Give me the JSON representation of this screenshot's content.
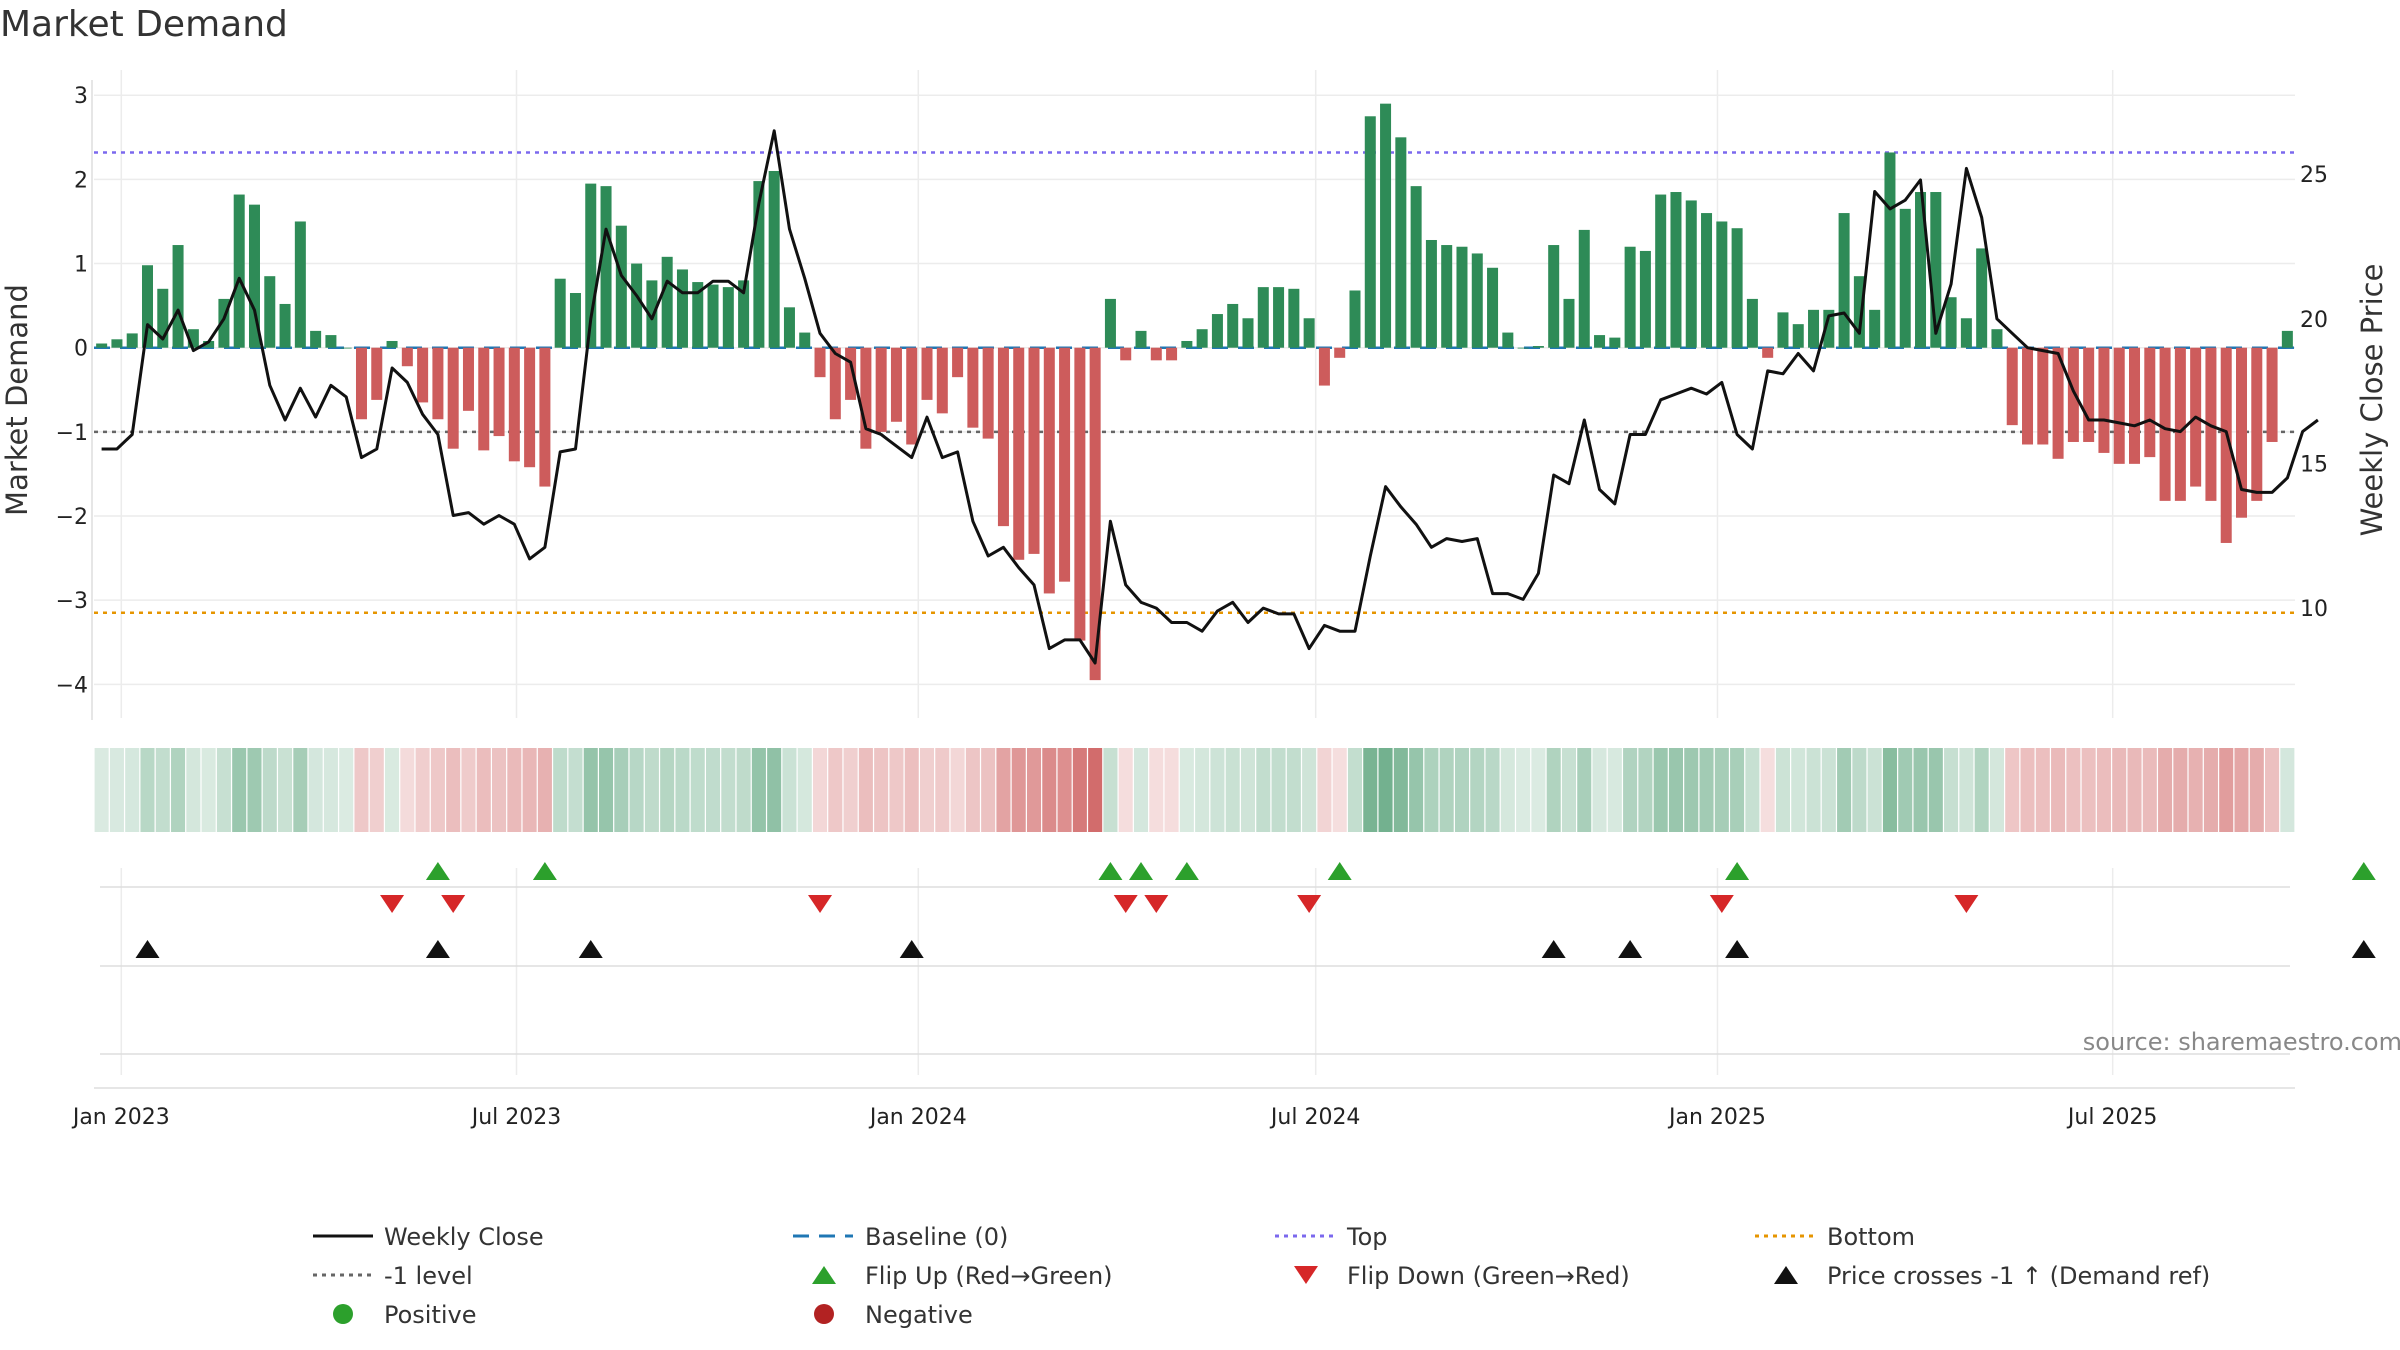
{
  "title": "Market Demand",
  "source": "source: sharemaestro.com",
  "chart_data": {
    "type": "bar",
    "title": "Market Demand",
    "xlabel": "",
    "ylabel": "Market Demand",
    "ylabel_right": "Weekly Close Price",
    "ylim": [
      -4.4,
      3.3
    ],
    "ylim_right": [
      6.2,
      28.6
    ],
    "yticks": [
      -4,
      -3,
      -2,
      -1,
      0,
      1,
      2,
      3
    ],
    "yticks_right": [
      10,
      15,
      20,
      25
    ],
    "ytick_labels": [
      "−4",
      "−3",
      "−2",
      "−1",
      "0",
      "1",
      "2",
      "3"
    ],
    "ytick_labels_right": [
      "10",
      "15",
      "20",
      "25"
    ],
    "x_start": "2022-12-23",
    "x_step_days": 7,
    "xticks": [
      {
        "label": "Jan 2023",
        "date": "2023-01-01"
      },
      {
        "label": "Jul 2023",
        "date": "2023-07-01"
      },
      {
        "label": "Jan 2024",
        "date": "2024-01-01"
      },
      {
        "label": "Jul 2024",
        "date": "2024-07-01"
      },
      {
        "label": "Jan 2025",
        "date": "2025-01-01"
      },
      {
        "label": "Jul 2025",
        "date": "2025-07-01"
      }
    ],
    "reference_lines": {
      "top": 2.32,
      "bottom": -3.15,
      "minus_one": -1,
      "baseline": 0
    },
    "colors": {
      "positive": "#2e8b57",
      "negative": "#cd5c5c",
      "close": "#111111",
      "top": "#7b68ee",
      "bottom": "#e69500",
      "minus_one": "#666666",
      "baseline": "#1f77b4",
      "flip_up": "#2ca02c",
      "flip_down": "#d62728",
      "cross": "#111111"
    },
    "demand": [
      0.05,
      0.1,
      0.17,
      0.98,
      0.7,
      1.22,
      0.22,
      0.08,
      0.58,
      1.82,
      1.7,
      0.85,
      0.52,
      1.5,
      0.2,
      0.15,
      0.0,
      -0.85,
      -0.62,
      0.08,
      -0.22,
      -0.65,
      -0.85,
      -1.2,
      -0.75,
      -1.22,
      -1.05,
      -1.35,
      -1.42,
      -1.65,
      0.82,
      0.65,
      1.95,
      1.92,
      1.45,
      1.0,
      0.8,
      1.08,
      0.93,
      0.78,
      0.75,
      0.72,
      0.8,
      1.98,
      2.1,
      0.48,
      0.18,
      -0.35,
      -0.85,
      -0.62,
      -1.2,
      -1.0,
      -0.88,
      -1.15,
      -0.62,
      -0.78,
      -0.35,
      -0.95,
      -1.08,
      -2.12,
      -2.52,
      -2.45,
      -2.92,
      -2.78,
      -3.48,
      -3.95,
      0.58,
      -0.15,
      0.2,
      -0.15,
      -0.15,
      0.08,
      0.22,
      0.4,
      0.52,
      0.35,
      0.72,
      0.72,
      0.7,
      0.35,
      -0.45,
      -0.12,
      0.68,
      2.75,
      2.9,
      2.5,
      1.92,
      1.28,
      1.22,
      1.2,
      1.12,
      0.95,
      0.18,
      0.0,
      0.02,
      1.22,
      0.58,
      1.4,
      0.15,
      0.12,
      1.2,
      1.15,
      1.82,
      1.85,
      1.75,
      1.6,
      1.5,
      1.42,
      0.58,
      -0.12,
      0.42,
      0.28,
      0.45,
      0.45,
      1.6,
      0.85,
      0.45,
      2.32,
      1.65,
      1.85,
      1.85,
      0.6,
      0.35,
      1.18,
      0.22,
      -0.92,
      -1.15,
      -1.15,
      -1.32,
      -1.12,
      -1.12,
      -1.25,
      -1.38,
      -1.38,
      -1.3,
      -1.82,
      -1.82,
      -1.65,
      -1.82,
      -2.32,
      -2.02,
      -1.82,
      -1.12,
      0.2
    ],
    "weekly_close": [
      15.5,
      15.5,
      16.0,
      19.8,
      19.3,
      20.3,
      18.9,
      19.2,
      20.0,
      21.4,
      20.3,
      17.7,
      16.5,
      17.6,
      16.6,
      17.7,
      17.3,
      15.2,
      15.5,
      18.3,
      17.8,
      16.7,
      16.0,
      13.2,
      13.3,
      12.9,
      13.2,
      12.9,
      11.7,
      12.1,
      15.4,
      15.5,
      20.0,
      23.1,
      21.5,
      20.8,
      20.0,
      21.3,
      20.9,
      20.9,
      21.3,
      21.3,
      20.9,
      24.0,
      26.5,
      23.1,
      21.4,
      19.5,
      18.8,
      18.5,
      16.2,
      16.0,
      15.6,
      15.2,
      16.6,
      15.2,
      15.4,
      13.0,
      11.8,
      12.1,
      11.4,
      10.8,
      8.6,
      8.9,
      8.9,
      8.1,
      13.0,
      10.8,
      10.2,
      10.0,
      9.5,
      9.5,
      9.2,
      9.9,
      10.2,
      9.5,
      10.0,
      9.8,
      9.8,
      8.6,
      9.4,
      9.2,
      9.2,
      11.8,
      14.2,
      13.5,
      12.9,
      12.1,
      12.4,
      12.3,
      12.4,
      10.5,
      10.5,
      10.3,
      11.2,
      14.6,
      14.3,
      16.5,
      14.1,
      13.6,
      16.0,
      16.0,
      17.2,
      17.4,
      17.6,
      17.4,
      17.8,
      16.0,
      15.5,
      18.2,
      18.1,
      18.8,
      18.2,
      20.1,
      20.2,
      19.5,
      24.4,
      23.8,
      24.1,
      24.8,
      19.5,
      21.2,
      25.2,
      23.5,
      20.0,
      19.5,
      19.0,
      18.9,
      18.8,
      17.5,
      16.5,
      16.5,
      16.4,
      16.3,
      16.5,
      16.2,
      16.1,
      16.6,
      16.3,
      16.1,
      14.1,
      14.0,
      14.0,
      14.5,
      16.1,
      16.5
    ],
    "flip_up_dates": [
      "2023-05-26",
      "2023-07-14",
      "2024-03-29",
      "2024-04-12",
      "2024-05-03",
      "2024-07-12",
      "2025-01-10",
      "2025-10-24"
    ],
    "flip_down_dates": [
      "2023-05-05",
      "2023-06-02",
      "2023-11-17",
      "2024-04-05",
      "2024-04-19",
      "2024-06-28",
      "2025-01-03",
      "2025-04-25"
    ],
    "price_cross_dates": [
      "2023-01-13",
      "2023-05-26",
      "2023-08-04",
      "2023-12-29",
      "2024-10-18",
      "2024-11-22",
      "2025-01-10",
      "2025-10-24"
    ],
    "legend": {
      "weekly_close": "Weekly Close",
      "baseline": "Baseline (0)",
      "top": "Top",
      "bottom": "Bottom",
      "minus_one": "-1 level",
      "flip_up": "Flip Up (Red→Green)",
      "flip_down": "Flip Down (Green→Red)",
      "price_cross": "Price crosses -1 ↑ (Demand ref)",
      "positive": "Positive",
      "negative": "Negative"
    }
  }
}
